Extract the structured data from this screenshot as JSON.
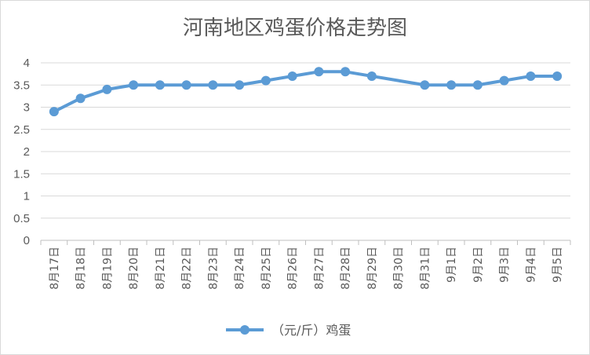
{
  "chart_data": {
    "type": "line",
    "title": "河南地区鸡蛋价格走势图",
    "xlabel": "",
    "ylabel": "",
    "ylim": [
      0,
      4
    ],
    "yticks": [
      "0",
      "0.5",
      "1",
      "1.5",
      "2",
      "2.5",
      "3",
      "3.5",
      "4"
    ],
    "grid": true,
    "legend_position": "bottom",
    "categories": [
      "8月17日",
      "8月18日",
      "8月19日",
      "8月20日",
      "8月21日",
      "8月22日",
      "8月23日",
      "8月24日",
      "8月25日",
      "8月26日",
      "8月27日",
      "8月28日",
      "8月29日",
      "8月30日",
      "8月31日",
      "9月1日",
      "9月2日",
      "9月3日",
      "9月4日",
      "9月5日"
    ],
    "series": [
      {
        "name": "（元/斤）鸡蛋",
        "color": "#5b9bd5",
        "values": [
          2.9,
          3.2,
          3.4,
          3.5,
          3.5,
          3.5,
          3.5,
          3.5,
          3.6,
          3.7,
          3.8,
          3.8,
          3.7,
          null,
          3.5,
          3.5,
          3.5,
          3.6,
          3.7,
          3.7
        ]
      }
    ]
  }
}
